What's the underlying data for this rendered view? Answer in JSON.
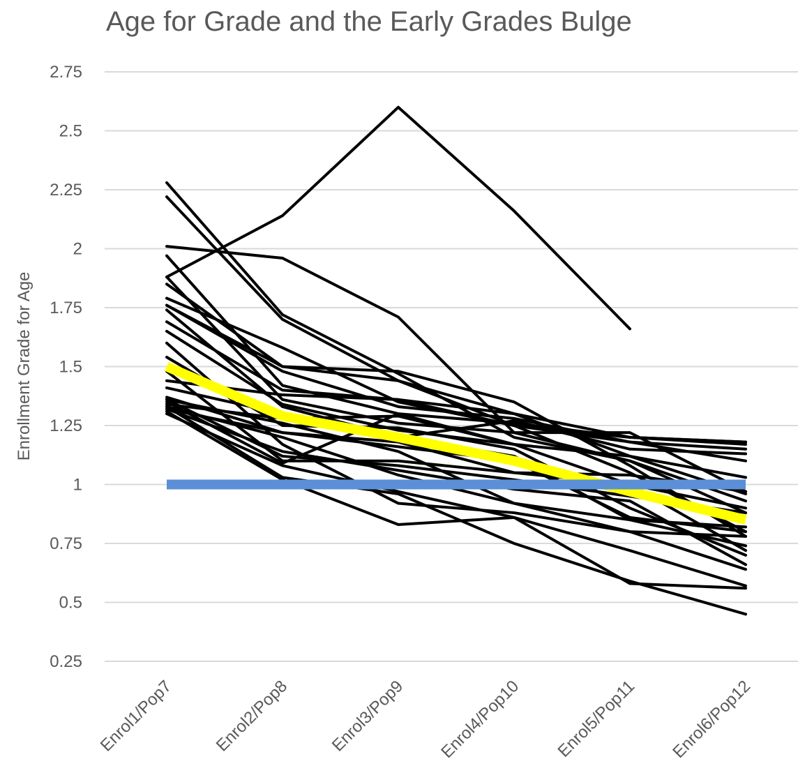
{
  "chart_data": {
    "type": "line",
    "title": "Age for Grade and the Early Grades Bulge",
    "y_label": "Enrollment Grade for Age",
    "categories": [
      "Enrol1/Pop7",
      "Enrol2/Pop8",
      "Enrol3/Pop9",
      "Enrol4/Pop10",
      "Enrol5/Pop11",
      "Enrol6/Pop12"
    ],
    "ylim": [
      0.25,
      2.75
    ],
    "yticks": [
      0.25,
      0.5,
      0.75,
      1,
      1.25,
      1.5,
      1.75,
      2,
      2.25,
      2.5,
      2.75
    ],
    "grid": true,
    "series": [
      {
        "color": "#000000",
        "values": [
          1.88,
          2.14,
          2.6,
          2.16,
          1.66,
          null
        ]
      },
      {
        "color": "#000000",
        "values": [
          2.28,
          1.72,
          1.47,
          1.2,
          1.1,
          0.93
        ]
      },
      {
        "color": "#000000",
        "values": [
          2.22,
          1.7,
          1.44,
          1.25,
          1.05,
          0.8
        ]
      },
      {
        "color": "#000000",
        "values": [
          2.01,
          1.96,
          1.71,
          1.22,
          1.1,
          0.88
        ]
      },
      {
        "color": "#000000",
        "values": [
          1.97,
          1.42,
          1.3,
          1.17,
          1,
          0.72
        ]
      },
      {
        "color": "#000000",
        "values": [
          1.88,
          1.36,
          1.26,
          1.22,
          1.22,
          0.97
        ]
      },
      {
        "color": "#000000",
        "values": [
          1.85,
          1.5,
          1.44,
          1.3,
          1.2,
          1.18
        ]
      },
      {
        "color": "#000000",
        "values": [
          1.79,
          1.58,
          1.35,
          1.25,
          1.2,
          1.17
        ]
      },
      {
        "color": "#000000",
        "values": [
          1.76,
          1.48,
          1.33,
          1.28,
          1.18,
          1.15
        ]
      },
      {
        "color": "#000000",
        "values": [
          1.74,
          1.33,
          1.2,
          1.27,
          1.15,
          1.13
        ]
      },
      {
        "color": "#000000",
        "values": [
          1.69,
          1.4,
          1.36,
          1.25,
          1.18,
          1.1
        ]
      },
      {
        "color": "#000000",
        "values": [
          1.65,
          1.34,
          1.23,
          1.17,
          1.12,
          1.03
        ]
      },
      {
        "color": "#000000",
        "values": [
          1.6,
          1.17,
          0.92,
          0.88,
          0.8,
          0.78
        ]
      },
      {
        "color": "#000000",
        "values": [
          1.54,
          1.25,
          1.24,
          1.15,
          0.9,
          0.7
        ]
      },
      {
        "color": "#000000",
        "values": [
          1.48,
          1.1,
          1.1,
          1.05,
          1.04,
          0.97
        ]
      },
      {
        "color": "#000000",
        "values": [
          1.44,
          1.38,
          1.36,
          1.3,
          1.12,
          0.96
        ]
      },
      {
        "color": "#000000",
        "values": [
          1.41,
          1.3,
          1.2,
          1.12,
          0.85,
          0.82
        ]
      },
      {
        "color": "#000000",
        "values": [
          1.37,
          1.22,
          1.18,
          1.05,
          1,
          0.9
        ]
      },
      {
        "color": "#000000",
        "values": [
          1.36,
          1.12,
          1.08,
          1.02,
          0.95,
          0.88
        ]
      },
      {
        "color": "#000000",
        "values": [
          1.35,
          1.09,
          1.3,
          1.26,
          1.2,
          1.18
        ]
      },
      {
        "color": "#000000",
        "values": [
          1.34,
          1.28,
          1.29,
          1.17,
          null,
          null
        ]
      },
      {
        "color": "#000000",
        "values": [
          1.33,
          1.2,
          1.04,
          0.92,
          0.85,
          0.74
        ]
      },
      {
        "color": "#000000",
        "values": [
          1.32,
          1.14,
          1.06,
          0.98,
          0.93,
          0.66
        ]
      },
      {
        "color": "#000000",
        "values": [
          1.31,
          1.02,
          0.83,
          0.86,
          0.58,
          0.56
        ]
      },
      {
        "color": "#000000",
        "values": [
          1.33,
          1.03,
          0.96,
          0.75,
          0.59,
          0.45
        ]
      },
      {
        "color": "#000000",
        "values": [
          1.3,
          1.08,
          0.97,
          0.86,
          0.72,
          0.57
        ]
      },
      {
        "color": "#000000",
        "values": [
          1.36,
          1.26,
          1.14,
          0.92,
          0.8,
          0.64
        ]
      },
      {
        "color": "#000000",
        "values": [
          1.32,
          1.22,
          1.16,
          1.1,
          0.86,
          0.8
        ]
      },
      {
        "color": "#000000",
        "values": [
          1.76,
          1.5,
          1.48,
          1.35,
          1.08,
          0.78
        ]
      },
      {
        "color": "#ffff00",
        "values": [
          1.5,
          1.29,
          1.2,
          1.1,
          0.97,
          0.85
        ]
      },
      {
        "color": "#5b8fd6",
        "values": [
          1,
          1,
          1,
          1,
          1,
          1
        ]
      }
    ]
  }
}
